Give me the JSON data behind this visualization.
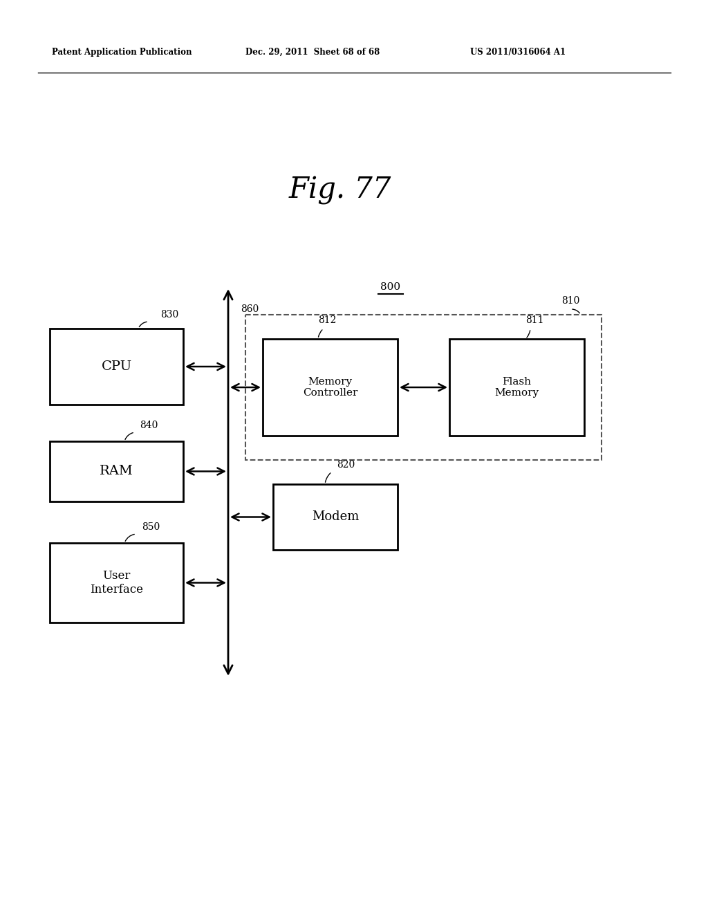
{
  "fig_title": "Fig. 77",
  "header_left": "Patent Application Publication",
  "header_mid": "Dec. 29, 2011  Sheet 68 of 68",
  "header_right": "US 2011/0316064 A1",
  "bg_color": "#ffffff",
  "label_800": "800",
  "label_810": "810",
  "label_811": "811",
  "label_812": "812",
  "label_820": "820",
  "label_830": "830",
  "label_840": "840",
  "label_850": "850",
  "label_860": "860",
  "cpu_label": "CPU",
  "ram_label": "RAM",
  "ui_label": "User\nInterface",
  "mc_label": "Memory\nController",
  "fm_label": "Flash\nMemory",
  "modem_label": "Modem",
  "box_color": "#000000",
  "box_fill": "#ffffff",
  "arrow_color": "#000000",
  "dashed_box_color": "#555555",
  "text_color": "#000000"
}
